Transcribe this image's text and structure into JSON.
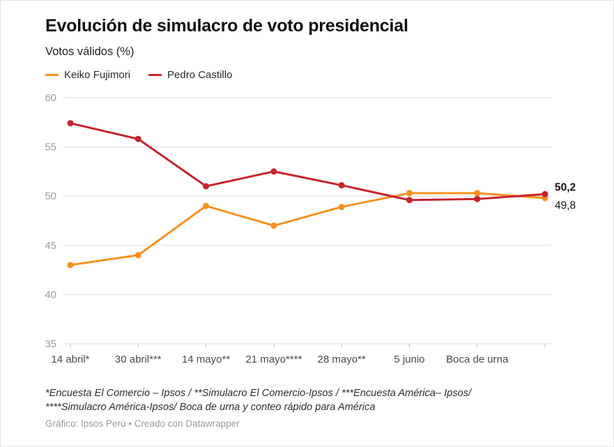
{
  "header": {
    "title": "Evolución de simulacro de voto presidencial",
    "subtitle": "Votos válidos (%)"
  },
  "chart_data": {
    "type": "line",
    "title": "Evolución de simulacro de voto presidencial",
    "subtitle": "Votos válidos (%)",
    "categories": [
      "14 abril*",
      "30 abril***",
      "14 mayo**",
      "21 mayo****",
      "28 mayo**",
      "5 junio",
      "Boca de urna",
      ""
    ],
    "series": [
      {
        "name": "Keiko Fujimori",
        "color": "#f5911e",
        "values": [
          43.0,
          44.0,
          49.0,
          47.0,
          48.9,
          50.3,
          50.3,
          49.8
        ],
        "end_label": "49,8",
        "end_label_bold": false
      },
      {
        "name": "Pedro Castillo",
        "color": "#c8232c",
        "values": [
          57.4,
          55.8,
          51.0,
          52.5,
          51.1,
          49.6,
          49.7,
          50.2
        ],
        "end_label": "50,2",
        "end_label_bold": true
      }
    ],
    "ylim": [
      35,
      60
    ],
    "yticks": [
      35,
      40,
      45,
      50,
      55,
      60
    ],
    "grid": true,
    "legend_position": "top"
  },
  "footer": {
    "notes": "*Encuesta El Comercio – Ipsos / **Simulacro El Comercio-Ipsos / ***Encuesta América– Ipsos/ ****Simulacro América-Ipsos/ Boca de urna y conteo rápido para América",
    "byline": "Gráfico: Ipsos Perú • Creado con Datawrapper"
  }
}
